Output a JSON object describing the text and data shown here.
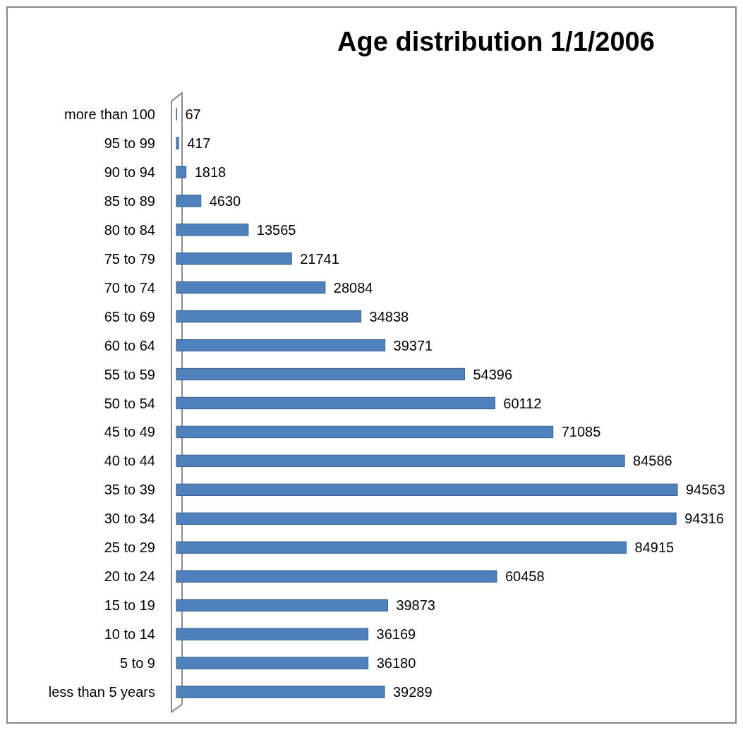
{
  "chart_data": {
    "type": "bar",
    "orientation": "horizontal",
    "title": "Age distribution 1/1/2006",
    "categories": [
      "more than 100",
      "95 to 99",
      "90 to 94",
      "85 to 89",
      "80 to 84",
      "75 to 79",
      "70 to 74",
      "65 to 69",
      "60 to 64",
      "55 to 59",
      "50 to 54",
      "45 to 49",
      "40 to 44",
      "35 to 39",
      "30 to 34",
      "25 to 29",
      "20 to 24",
      "15 to 19",
      "10 to 14",
      "5 to 9",
      "less than 5 years"
    ],
    "values": [
      67,
      417,
      1818,
      4630,
      13565,
      21741,
      28084,
      34838,
      39371,
      54396,
      60112,
      71085,
      84586,
      94563,
      94316,
      84915,
      60458,
      39873,
      36169,
      36180,
      39289
    ],
    "color": "#4f81bd",
    "data_labels": true,
    "tick_labels": "y"
  }
}
